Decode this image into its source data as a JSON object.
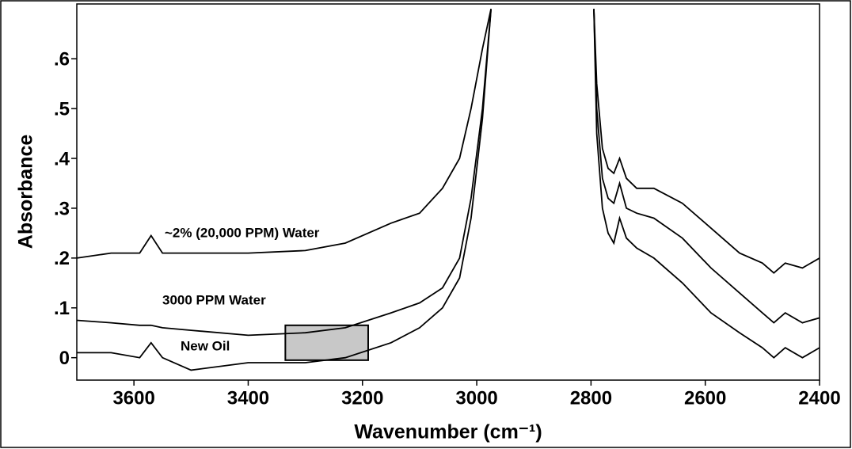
{
  "chart_data": {
    "type": "line",
    "x_label": "Wavenumber (cm⁻¹)",
    "y_label": "Absorbance",
    "x": [
      3700,
      3640,
      3590,
      3570,
      3550,
      3500,
      3400,
      3300,
      3230,
      3150,
      3100,
      3060,
      3030,
      3010,
      2990,
      2975,
      2880,
      2795,
      2790,
      2780,
      2770,
      2760,
      2750,
      2738,
      2720,
      2690,
      2640,
      2590,
      2540,
      2500,
      2480,
      2460,
      2430,
      2400
    ],
    "series": [
      {
        "name": "~2% (20,000 PPM) Water",
        "color": "#000000",
        "values": [
          0.2,
          0.21,
          0.21,
          0.245,
          0.21,
          0.21,
          0.21,
          0.215,
          0.23,
          0.27,
          0.29,
          0.34,
          0.4,
          0.5,
          0.62,
          0.7,
          null,
          0.7,
          0.55,
          0.42,
          0.38,
          0.37,
          0.4,
          0.36,
          0.34,
          0.34,
          0.31,
          0.26,
          0.21,
          0.19,
          0.17,
          0.19,
          0.18,
          0.2
        ]
      },
      {
        "name": "3000 PPM Water",
        "color": "#000000",
        "values": [
          0.075,
          0.07,
          0.065,
          0.065,
          0.06,
          0.055,
          0.045,
          0.05,
          0.06,
          0.09,
          0.11,
          0.14,
          0.2,
          0.32,
          0.5,
          0.7,
          null,
          0.7,
          0.5,
          0.36,
          0.32,
          0.31,
          0.35,
          0.3,
          0.29,
          0.28,
          0.24,
          0.18,
          0.13,
          0.09,
          0.07,
          0.09,
          0.07,
          0.08
        ]
      },
      {
        "name": "New Oil",
        "color": "#000000",
        "values": [
          0.01,
          0.01,
          0.0,
          0.03,
          0.0,
          -0.025,
          -0.01,
          -0.01,
          0.0,
          0.03,
          0.06,
          0.1,
          0.16,
          0.28,
          0.48,
          0.7,
          null,
          0.7,
          0.45,
          0.3,
          0.25,
          0.23,
          0.28,
          0.24,
          0.22,
          0.2,
          0.15,
          0.09,
          0.05,
          0.02,
          0.0,
          0.02,
          0.0,
          0.02
        ]
      }
    ],
    "highlight": {
      "x": [
        3335,
        3190
      ],
      "y": [
        -0.005,
        0.065
      ],
      "color": "#c8c8c8"
    },
    "xlim": [
      3700,
      2400
    ],
    "xticks": [
      3600,
      3400,
      3200,
      3000,
      2800,
      2600,
      2400
    ],
    "ylim": [
      -0.045,
      0.71
    ],
    "yticks": [
      0,
      {
        "value": 0.1,
        "label": ".1"
      },
      {
        "value": 0.2,
        "label": ".2"
      },
      {
        "value": 0.3,
        "label": ".3"
      },
      {
        "value": 0.4,
        "label": ".4"
      },
      {
        "value": 0.5,
        "label": ".5"
      },
      {
        "value": 0.6,
        "label": ".6"
      }
    ]
  }
}
